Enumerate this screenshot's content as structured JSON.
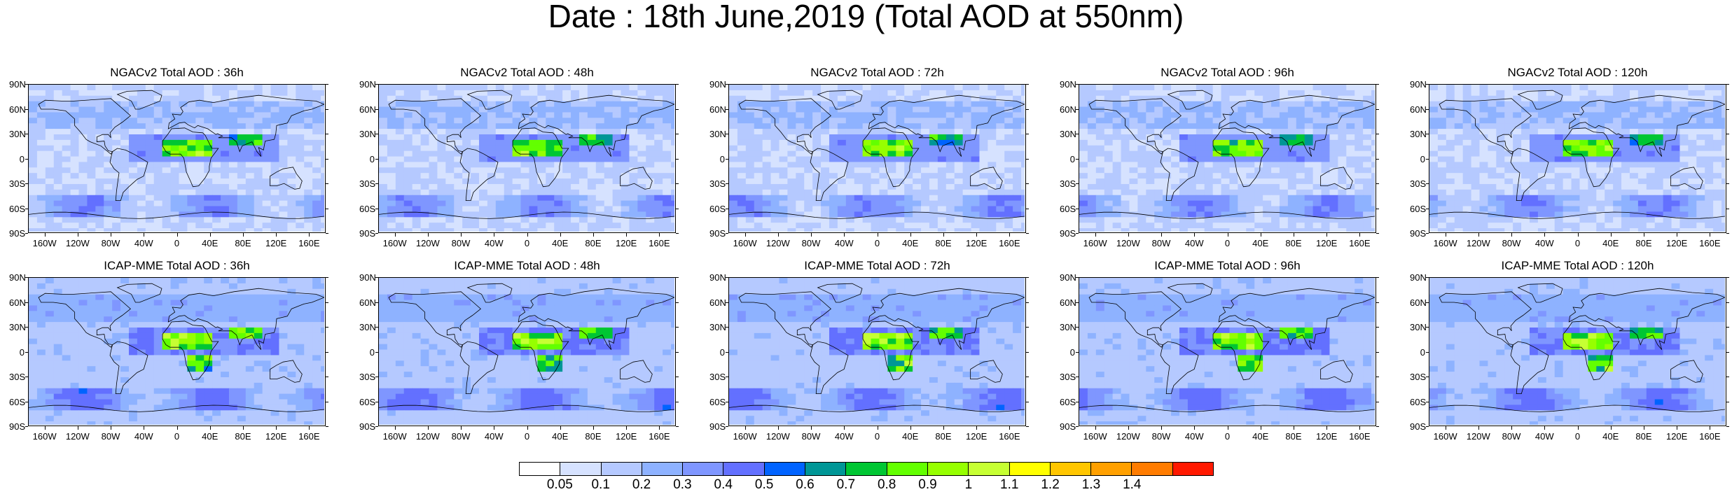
{
  "title": "Date : 18th June,2019 (Total AOD at 550nm)",
  "colors": {
    "ocean_low": "#ffffff",
    "palette": [
      "#ffffff",
      "#d6e2ff",
      "#b5c9ff",
      "#8eb2ff",
      "#7f96ff",
      "#6370ff",
      "#0063ff",
      "#009696",
      "#00c633",
      "#63ff00",
      "#96ff00",
      "#c6ff33",
      "#ffff00",
      "#ffc600",
      "#ffa000",
      "#ff7c00",
      "#ff1900"
    ],
    "coastline": "#000000"
  },
  "colorbar": {
    "labels": [
      "0.05",
      "0.1",
      "0.2",
      "0.3",
      "0.4",
      "0.5",
      "0.6",
      "0.7",
      "0.8",
      "0.9",
      "1",
      "1.1",
      "1.2",
      "1.3",
      "1.4"
    ]
  },
  "axes": {
    "lat_labels": [
      "90N",
      "60N",
      "30N",
      "0",
      "30S",
      "60S",
      "90S"
    ],
    "lon_labels": [
      "160W",
      "120W",
      "80W",
      "40W",
      "0",
      "40E",
      "80E",
      "120E",
      "160E"
    ]
  },
  "rows": [
    {
      "model": "NGACv2",
      "panels": [
        {
          "title": "NGACv2 Total AOD : 36h"
        },
        {
          "title": "NGACv2 Total AOD : 48h"
        },
        {
          "title": "NGACv2 Total AOD : 72h"
        },
        {
          "title": "NGACv2 Total AOD : 96h"
        },
        {
          "title": "NGACv2 Total AOD : 120h"
        }
      ]
    },
    {
      "model": "ICAP-MME",
      "panels": [
        {
          "title": "ICAP-MME Total AOD : 36h"
        },
        {
          "title": "ICAP-MME Total AOD : 48h"
        },
        {
          "title": "ICAP-MME Total AOD : 72h"
        },
        {
          "title": "ICAP-MME Total AOD : 96h"
        },
        {
          "title": "ICAP-MME Total AOD : 120h"
        }
      ]
    }
  ]
}
